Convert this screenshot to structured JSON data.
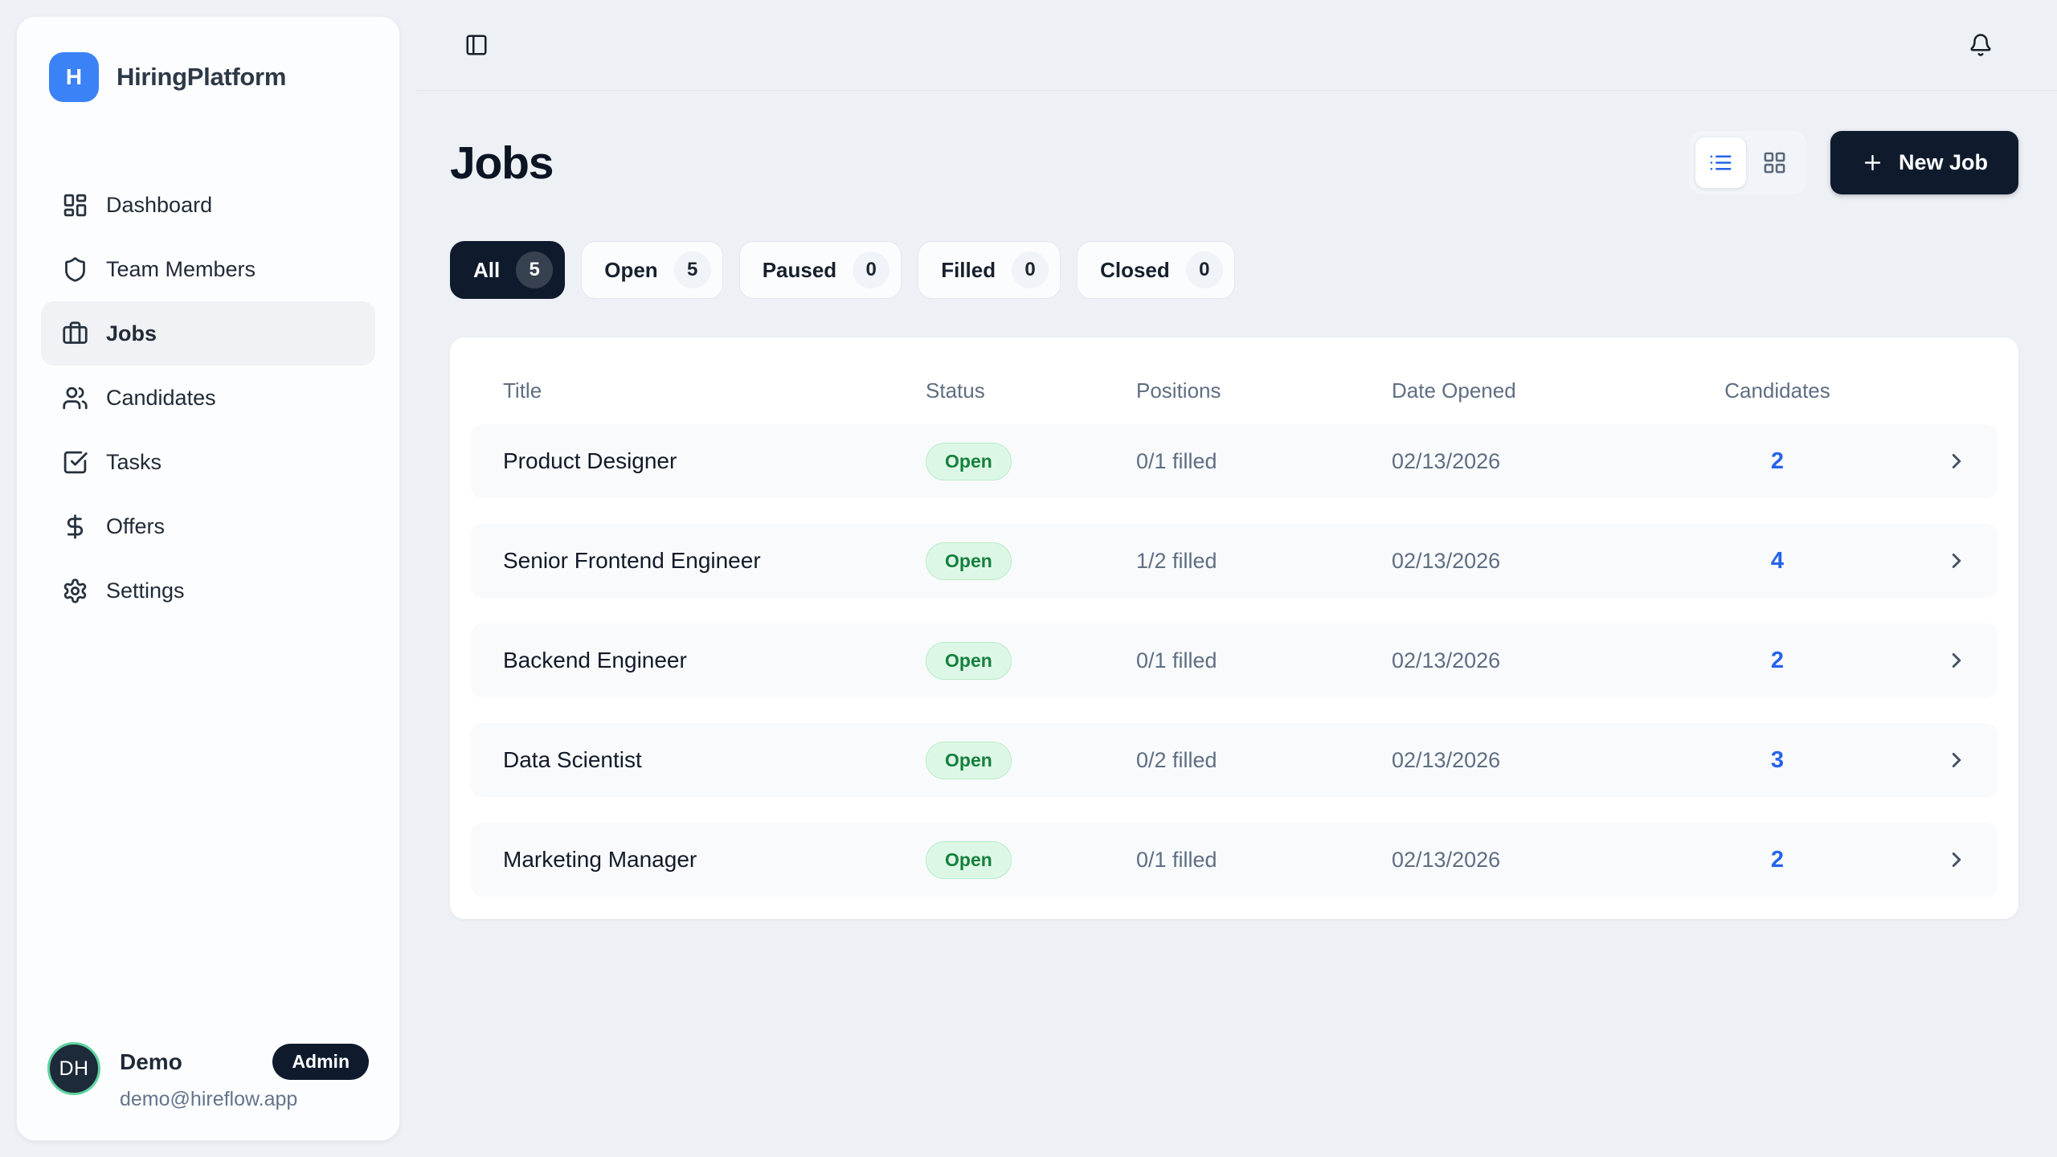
{
  "colors": {
    "accent_blue": "#3b82f6",
    "link_blue": "#2563eb",
    "navy": "#0f1b2d",
    "badge_green_bg": "#ddf7e6",
    "badge_green_text": "#15803d",
    "avatar_ring_green": "#5fd3a0"
  },
  "brand": {
    "logo_letter": "H",
    "name": "HiringPlatform"
  },
  "sidebar": {
    "items": [
      {
        "label": "Dashboard",
        "icon": "dashboard",
        "active": false
      },
      {
        "label": "Team Members",
        "icon": "shield",
        "active": false
      },
      {
        "label": "Jobs",
        "icon": "briefcase",
        "active": true
      },
      {
        "label": "Candidates",
        "icon": "users",
        "active": false
      },
      {
        "label": "Tasks",
        "icon": "square-check",
        "active": false
      },
      {
        "label": "Offers",
        "icon": "dollar",
        "active": false
      },
      {
        "label": "Settings",
        "icon": "gear",
        "active": false
      }
    ]
  },
  "user": {
    "initials": "DH",
    "name": "Demo",
    "role": "Admin",
    "email": "demo@hireflow.app"
  },
  "page": {
    "title": "Jobs",
    "new_job_label": "New Job"
  },
  "filters": [
    {
      "label": "All",
      "count": "5",
      "active": true
    },
    {
      "label": "Open",
      "count": "5",
      "active": false
    },
    {
      "label": "Paused",
      "count": "0",
      "active": false
    },
    {
      "label": "Filled",
      "count": "0",
      "active": false
    },
    {
      "label": "Closed",
      "count": "0",
      "active": false
    }
  ],
  "table": {
    "columns": [
      "Title",
      "Status",
      "Positions",
      "Date Opened",
      "Candidates"
    ],
    "rows": [
      {
        "title": "Product Designer",
        "status": "Open",
        "positions": "0/1 filled",
        "date_opened": "02/13/2026",
        "candidates": "2"
      },
      {
        "title": "Senior Frontend Engineer",
        "status": "Open",
        "positions": "1/2 filled",
        "date_opened": "02/13/2026",
        "candidates": "4"
      },
      {
        "title": "Backend Engineer",
        "status": "Open",
        "positions": "0/1 filled",
        "date_opened": "02/13/2026",
        "candidates": "2"
      },
      {
        "title": "Data Scientist",
        "status": "Open",
        "positions": "0/2 filled",
        "date_opened": "02/13/2026",
        "candidates": "3"
      },
      {
        "title": "Marketing Manager",
        "status": "Open",
        "positions": "0/1 filled",
        "date_opened": "02/13/2026",
        "candidates": "2"
      }
    ]
  }
}
